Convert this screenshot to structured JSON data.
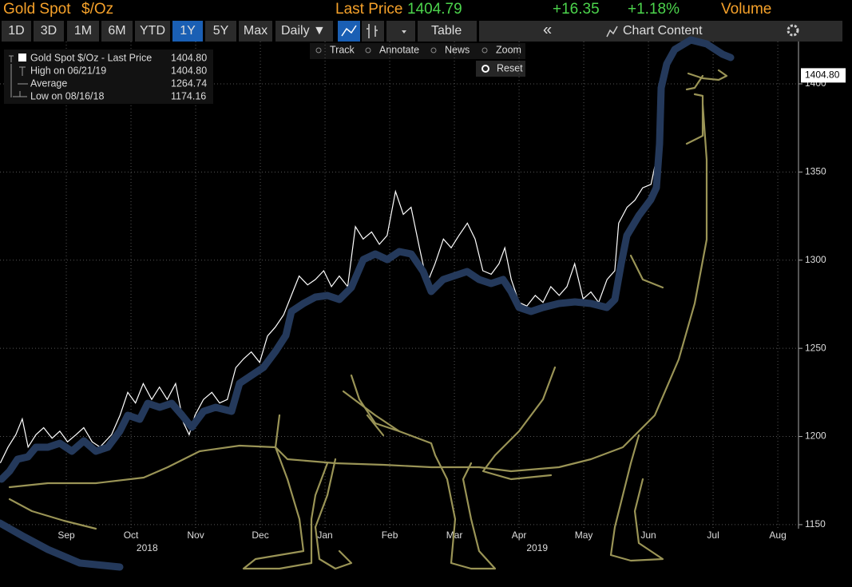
{
  "header": {
    "ticker": "Gold Spot",
    "unit": "$/Oz",
    "last_price_label": "Last Price",
    "last_price": "1404.79",
    "change": "+16.35",
    "change_pct": "+1.18%",
    "volume_label": "Volume"
  },
  "toolbar": {
    "ranges": [
      "1D",
      "3D",
      "1M",
      "6M",
      "YTD",
      "1Y",
      "5Y",
      "Max"
    ],
    "active_range": "1Y",
    "frequency": "Daily ▼",
    "table": "Table",
    "collapse": "«",
    "chart_content": "Chart Content"
  },
  "chart_tools": [
    "Track",
    "Annotate",
    "News",
    "Zoom"
  ],
  "reset": "Reset",
  "chart_data": {
    "type": "line",
    "series": [
      {
        "name": "Gold Spot $/Oz - Last Price",
        "color": "#ffffff",
        "last_label": "1404.80",
        "x": [
          -0.02,
          0.1,
          0.22,
          0.32,
          0.41,
          0.53,
          0.65,
          0.78,
          0.9,
          1.02,
          1.15,
          1.27,
          1.4,
          1.52,
          1.7,
          1.83,
          1.95,
          2.07,
          2.19,
          2.32,
          2.44,
          2.56,
          2.69,
          2.81,
          2.9,
          2.99,
          3.12,
          3.25,
          3.37,
          3.49,
          3.62,
          3.74,
          3.86,
          3.99,
          4.11,
          4.23,
          4.36,
          4.48,
          4.6,
          4.73,
          4.85,
          4.98,
          5.1,
          5.22,
          5.35,
          5.47,
          5.59,
          5.72,
          5.84,
          5.96,
          6.09,
          6.21,
          6.33,
          6.46,
          6.58,
          6.7,
          6.83,
          6.95,
          7.07,
          7.2,
          7.32,
          7.44,
          7.57,
          7.69,
          7.78,
          7.88,
          8.0,
          8.12,
          8.25,
          8.37,
          8.49,
          8.62,
          8.74,
          8.86,
          8.99,
          9.11,
          9.23,
          9.36,
          9.48,
          9.54,
          9.67,
          9.79,
          9.91,
          10.04,
          10.12,
          10.19,
          10.25
        ],
        "values": [
          1185,
          1194,
          1201,
          1210,
          1194,
          1201,
          1205,
          1199,
          1203,
          1197,
          1201,
          1205,
          1197,
          1194,
          1201,
          1212,
          1225,
          1219,
          1230,
          1221,
          1228,
          1221,
          1230,
          1208,
          1201,
          1212,
          1221,
          1225,
          1219,
          1221,
          1239,
          1244,
          1248,
          1242,
          1257,
          1262,
          1269,
          1280,
          1291,
          1286,
          1289,
          1294,
          1285,
          1291,
          1285,
          1319,
          1312,
          1316,
          1309,
          1314,
          1339,
          1326,
          1330,
          1307,
          1287,
          1298,
          1312,
          1307,
          1314,
          1321,
          1312,
          1294,
          1292,
          1298,
          1307,
          1289,
          1276,
          1274,
          1280,
          1276,
          1285,
          1280,
          1285,
          1298,
          1278,
          1282,
          1276,
          1289,
          1294,
          1321,
          1330,
          1334,
          1341,
          1343,
          1357,
          1398,
          1404.8
        ]
      }
    ],
    "stats": [
      {
        "label": "High on 06/21/19",
        "value": "1404.80"
      },
      {
        "label": "Average",
        "value": "1264.74"
      },
      {
        "label": "Low on 08/16/18",
        "value": "1174.16"
      }
    ],
    "xlim": [
      -0.025,
      12.32
    ],
    "ylim": [
      1147.7,
      1424
    ],
    "xticks": [
      {
        "value": 1,
        "label": "Sep"
      },
      {
        "value": 2,
        "label": "Oct"
      },
      {
        "value": 3,
        "label": "Nov"
      },
      {
        "value": 4,
        "label": "Dec"
      },
      {
        "value": 5,
        "label": "Jan"
      },
      {
        "value": 6,
        "label": "Feb"
      },
      {
        "value": 7,
        "label": "Mar"
      },
      {
        "value": 8,
        "label": "Apr"
      },
      {
        "value": 9,
        "label": "May"
      },
      {
        "value": 10,
        "label": "Jun"
      },
      {
        "value": 11,
        "label": "Jul"
      },
      {
        "value": 12,
        "label": "Aug"
      }
    ],
    "x_group_ticks": [
      {
        "value": 2.25,
        "label": "2018"
      },
      {
        "value": 8.28,
        "label": "2019"
      }
    ],
    "yticks": [
      1150,
      1200,
      1250,
      1300,
      1350,
      1400
    ],
    "grid": true
  }
}
